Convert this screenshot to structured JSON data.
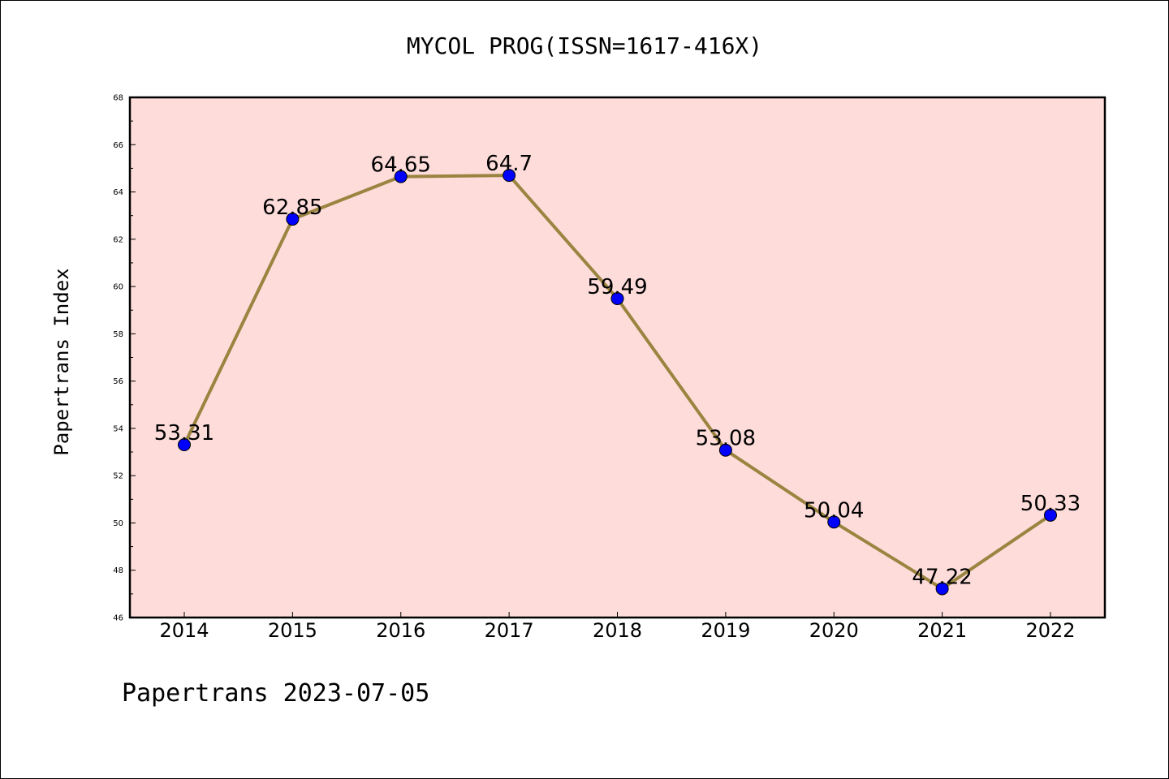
{
  "chart_data": {
    "type": "line",
    "title": "MYCOL PROG(ISSN=1617-416X)",
    "xlabel": "",
    "ylabel": "Papertrans Index",
    "categories": [
      "2014",
      "2015",
      "2016",
      "2017",
      "2018",
      "2019",
      "2020",
      "2021",
      "2022"
    ],
    "series": [
      {
        "values": [
          53.31,
          62.85,
          64.65,
          64.7,
          59.49,
          53.08,
          50.04,
          47.22,
          50.33
        ],
        "data_labels": [
          "53.31",
          "62.85",
          "64.65",
          "64.7",
          "59.49",
          "53.08",
          "50.04",
          "47.22",
          "50.33"
        ]
      }
    ],
    "ylim": [
      46,
      68
    ],
    "yticks": [
      "46",
      "48",
      "50",
      "52",
      "54",
      "56",
      "58",
      "60",
      "62",
      "64",
      "66",
      "68"
    ],
    "grid": false,
    "legend": "none",
    "colors": {
      "plot_background": "#fddcda",
      "line": "#9a8440",
      "marker": "#0000ff"
    }
  },
  "footer": "Papertrans 2023-07-05"
}
